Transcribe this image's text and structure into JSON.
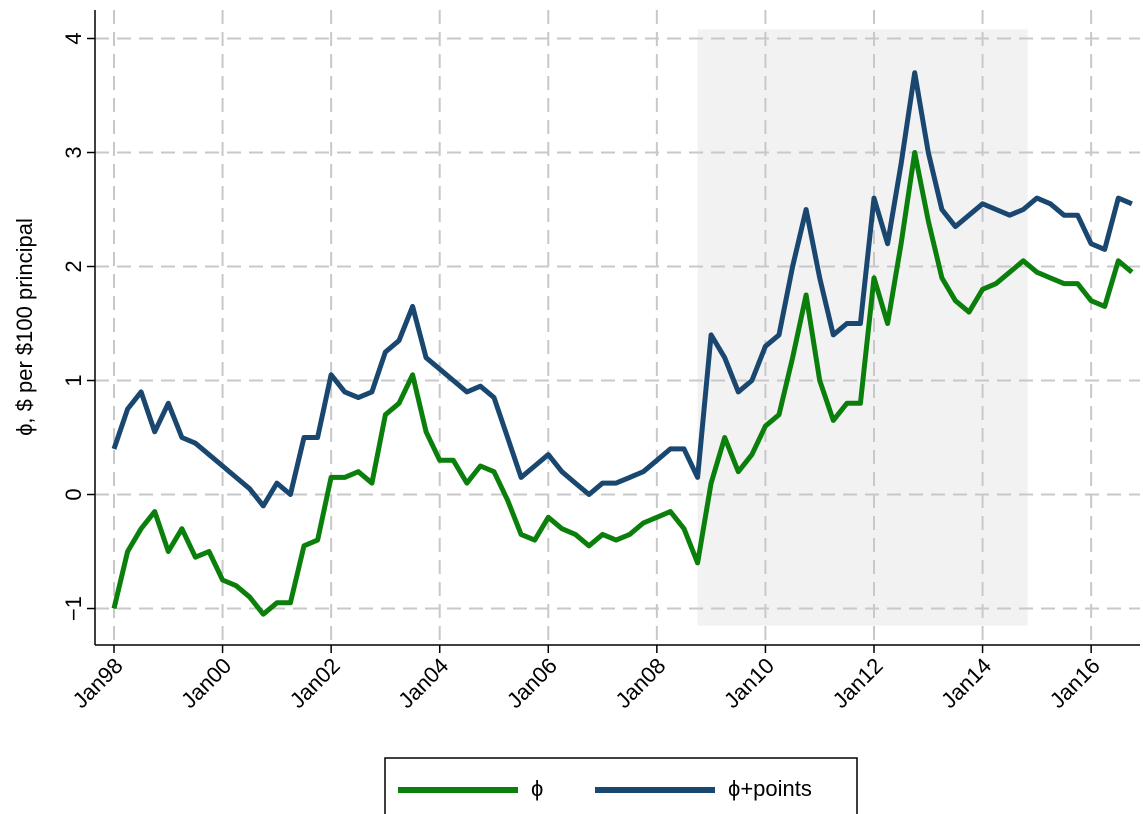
{
  "chart_data": {
    "type": "line",
    "y_label": "ϕ, $ per $100 principal",
    "x": [
      1998.0,
      1998.25,
      1998.5,
      1998.75,
      1999.0,
      1999.25,
      1999.5,
      1999.75,
      2000.0,
      2000.25,
      2000.5,
      2000.75,
      2001.0,
      2001.25,
      2001.5,
      2001.75,
      2002.0,
      2002.25,
      2002.5,
      2002.75,
      2003.0,
      2003.25,
      2003.5,
      2003.75,
      2004.0,
      2004.25,
      2004.5,
      2004.75,
      2005.0,
      2005.25,
      2005.5,
      2005.75,
      2006.0,
      2006.25,
      2006.5,
      2006.75,
      2007.0,
      2007.25,
      2007.5,
      2007.75,
      2008.0,
      2008.25,
      2008.5,
      2008.75,
      2009.0,
      2009.25,
      2009.5,
      2009.75,
      2010.0,
      2010.25,
      2010.5,
      2010.75,
      2011.0,
      2011.25,
      2011.5,
      2011.75,
      2012.0,
      2012.25,
      2012.5,
      2012.75,
      2013.0,
      2013.25,
      2013.5,
      2013.75,
      2014.0,
      2014.25,
      2014.5,
      2014.75,
      2015.0,
      2015.25,
      2015.5,
      2015.75,
      2016.0,
      2016.25,
      2016.5,
      2016.75
    ],
    "series": [
      {
        "name": "ϕ",
        "color": "#0b7f0b",
        "values": [
          -1.0,
          -0.5,
          -0.3,
          -0.15,
          -0.5,
          -0.3,
          -0.55,
          -0.5,
          -0.75,
          -0.8,
          -0.9,
          -1.05,
          -0.95,
          -0.95,
          -0.45,
          -0.4,
          0.15,
          0.15,
          0.2,
          0.1,
          0.7,
          0.8,
          1.05,
          0.55,
          0.3,
          0.3,
          0.1,
          0.25,
          0.2,
          -0.05,
          -0.35,
          -0.4,
          -0.2,
          -0.3,
          -0.35,
          -0.45,
          -0.35,
          -0.4,
          -0.35,
          -0.25,
          -0.2,
          -0.15,
          -0.3,
          -0.6,
          0.1,
          0.5,
          0.2,
          0.35,
          0.6,
          0.7,
          1.2,
          1.75,
          1.0,
          0.65,
          0.8,
          0.8,
          1.9,
          1.5,
          2.2,
          3.0,
          2.4,
          1.9,
          1.7,
          1.6,
          1.8,
          1.85,
          1.95,
          2.05,
          1.95,
          1.9,
          1.85,
          1.85,
          1.7,
          1.65,
          2.05,
          1.95
        ]
      },
      {
        "name": "ϕ+points",
        "color": "#1a476f",
        "values": [
          0.4,
          0.75,
          0.9,
          0.55,
          0.8,
          0.5,
          0.45,
          0.35,
          0.25,
          0.15,
          0.05,
          -0.1,
          0.1,
          0.0,
          0.5,
          0.5,
          1.05,
          0.9,
          0.85,
          0.9,
          1.25,
          1.35,
          1.65,
          1.2,
          1.1,
          1.0,
          0.9,
          0.95,
          0.85,
          0.5,
          0.15,
          0.25,
          0.35,
          0.2,
          0.1,
          0.0,
          0.1,
          0.1,
          0.15,
          0.2,
          0.3,
          0.4,
          0.4,
          0.15,
          1.4,
          1.2,
          0.9,
          1.0,
          1.3,
          1.4,
          2.0,
          2.5,
          1.9,
          1.4,
          1.5,
          1.5,
          2.6,
          2.2,
          2.9,
          3.7,
          3.0,
          2.5,
          2.35,
          2.45,
          2.55,
          2.5,
          2.45,
          2.5,
          2.6,
          2.55,
          2.45,
          2.45,
          2.2,
          2.15,
          2.6,
          2.55
        ]
      }
    ],
    "shaded_region": [
      2008.75,
      2014.83
    ],
    "shade_ylim": [
      -1.15,
      4.08
    ],
    "shade_color": "#f2f2f2",
    "xlim": [
      1997.65,
      2016.9
    ],
    "xticks": [
      {
        "value": 1998,
        "label": "Jan98"
      },
      {
        "value": 2000,
        "label": "Jan00"
      },
      {
        "value": 2002,
        "label": "Jan02"
      },
      {
        "value": 2004,
        "label": "Jan04"
      },
      {
        "value": 2006,
        "label": "Jan06"
      },
      {
        "value": 2008,
        "label": "Jan08"
      },
      {
        "value": 2010,
        "label": "Jan10"
      },
      {
        "value": 2012,
        "label": "Jan12"
      },
      {
        "value": 2014,
        "label": "Jan14"
      },
      {
        "value": 2016,
        "label": "Jan16"
      }
    ],
    "ylim": [
      -1.32,
      4.25
    ],
    "yticks": [
      {
        "value": -1,
        "label": "−1"
      },
      0,
      1,
      2,
      3,
      4
    ],
    "grid": true
  }
}
